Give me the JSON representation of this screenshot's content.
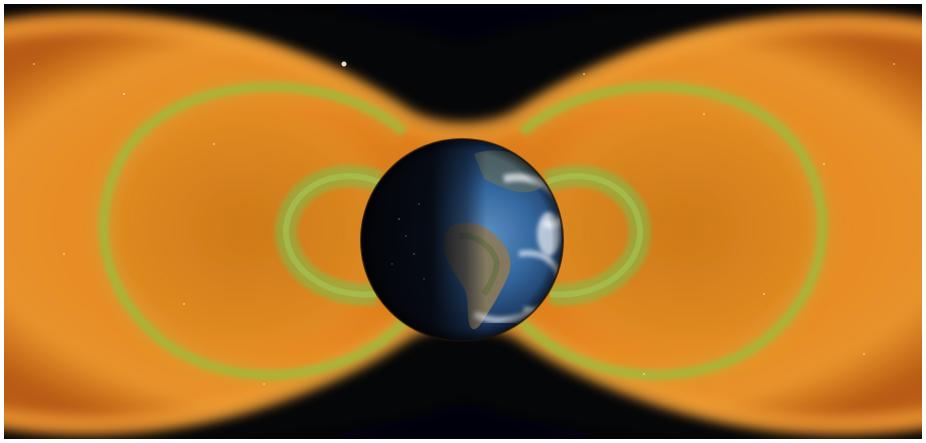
{
  "image": {
    "subject": "earth-radiation-belts",
    "colors": {
      "space": "#050608",
      "outer_belt": "#e8861f",
      "outer_belt_core": "#f29a2a",
      "belt_edge_green": "#8fbf3a",
      "inner_belt_green": "#7cc04a",
      "ocean_blue": "#2d5f95",
      "land_tan": "#8a7a5a",
      "cloud_white": "#e9eef4",
      "night_side": "#05070c"
    }
  }
}
